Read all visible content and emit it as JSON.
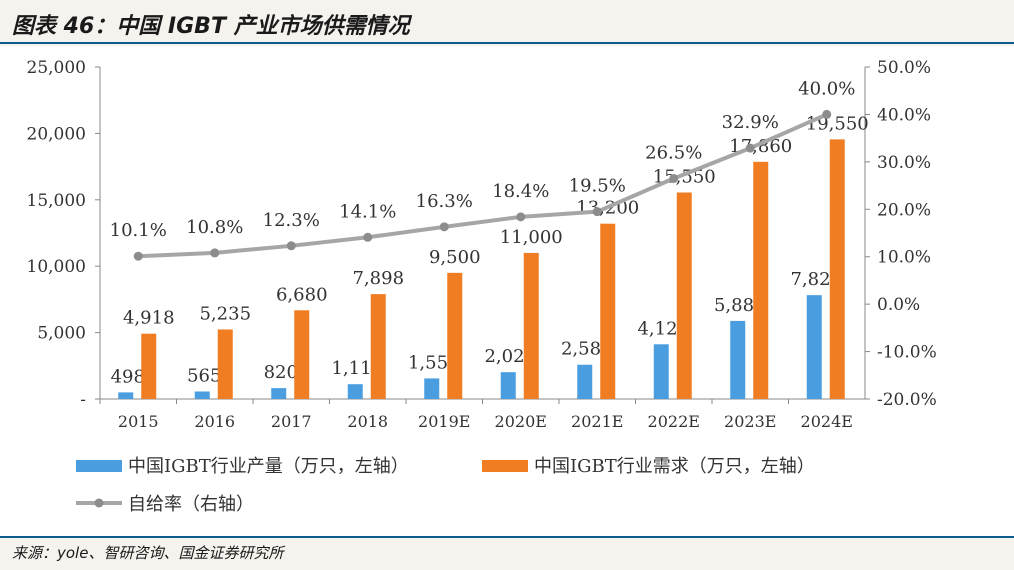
{
  "header": {
    "title": "图表 46：中国 IGBT 产业市场供需情况"
  },
  "footer": {
    "source": "来源：yole、智研咨询、国金证券研究所"
  },
  "colors": {
    "production": "#4a9ee0",
    "demand": "#f07d22",
    "rate": "#a6a6a6",
    "axis": "#888888",
    "text": "#333333"
  },
  "chart_data": {
    "type": "bar",
    "categories": [
      "2015",
      "2016",
      "2017",
      "2018",
      "2019E",
      "2020E",
      "2021E",
      "2022E",
      "2023E",
      "2024E"
    ],
    "y_left": {
      "ticks": [
        "25,000",
        "20,000",
        "15,000",
        "10,000",
        "5,000",
        "-"
      ],
      "range": [
        0,
        25000
      ]
    },
    "y_right": {
      "ticks": [
        "50.0%",
        "40.0%",
        "30.0%",
        "20.0%",
        "10.0%",
        "0.0%",
        "-10.0%",
        "-20.0%"
      ],
      "range": [
        -20,
        50
      ]
    },
    "series": [
      {
        "name": "中国IGBT行业产量（万只，左轴）",
        "type": "bar",
        "axis": "left",
        "values": [
          498,
          565,
          820,
          1115,
          1550,
          2020,
          2580,
          4120,
          5880,
          7820
        ],
        "labels": [
          "498",
          "565",
          "820",
          "1,115",
          "1,550",
          "2,020",
          "2,580",
          "4,120",
          "5,880",
          "7,820"
        ]
      },
      {
        "name": "中国IGBT行业需求（万只，左轴）",
        "type": "bar",
        "axis": "left",
        "values": [
          4918,
          5235,
          6680,
          7898,
          9500,
          11000,
          13200,
          15550,
          17860,
          19550
        ],
        "labels": [
          "4,918",
          "5,235",
          "6,680",
          "7,898",
          "9,500",
          "11,000",
          "13,200",
          "15,550",
          "17,860",
          "19,550"
        ]
      },
      {
        "name": "自给率（右轴）",
        "type": "line",
        "axis": "right",
        "values": [
          10.1,
          10.8,
          12.3,
          14.1,
          16.3,
          18.4,
          19.5,
          26.5,
          32.9,
          40.0
        ],
        "labels": [
          "10.1%",
          "10.8%",
          "12.3%",
          "14.1%",
          "16.3%",
          "18.4%",
          "19.5%",
          "26.5%",
          "32.9%",
          "40.0%"
        ]
      }
    ],
    "legend_position": "bottom"
  }
}
